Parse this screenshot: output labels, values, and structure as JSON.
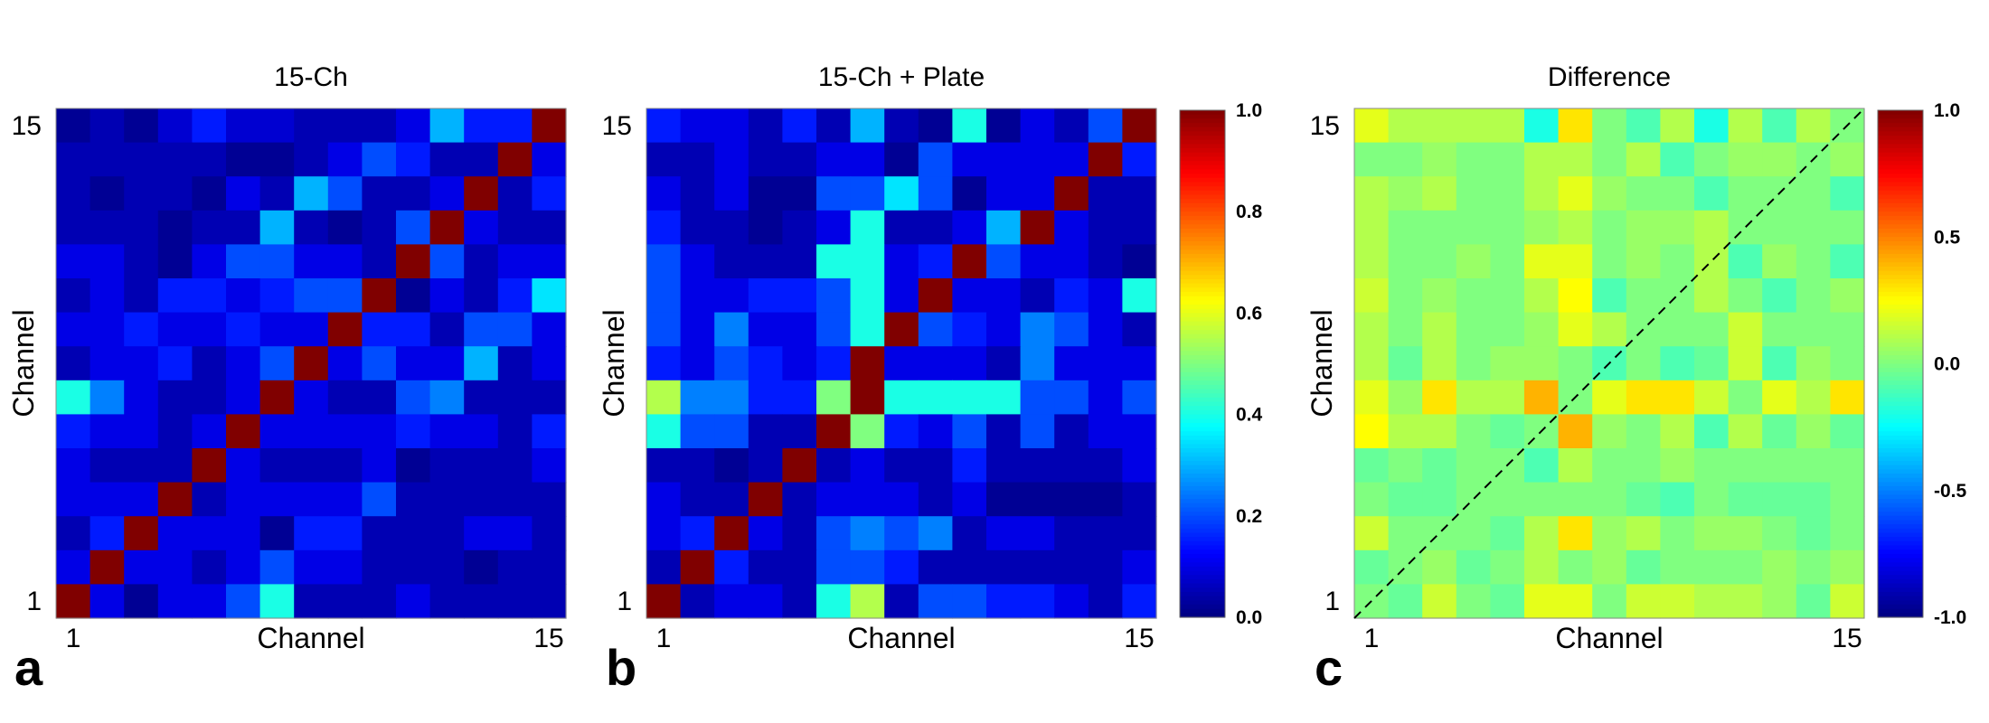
{
  "chart_data": [
    {
      "type": "heatmap",
      "panel_label": "a",
      "title": "15-Ch",
      "xlabel": "Channel",
      "ylabel": "Channel",
      "x_ticks": [
        "1",
        "15"
      ],
      "y_ticks": [
        "1",
        "15"
      ],
      "rows": 15,
      "cols": 15,
      "zlim": [
        0,
        1
      ],
      "colormap": "jet",
      "diagonal_line": false,
      "values": [
        [
          0.02,
          0.05,
          0.02,
          0.08,
          0.15,
          0.08,
          0.08,
          0.05,
          0.05,
          0.05,
          0.1,
          0.3,
          0.15,
          0.15,
          1.0
        ],
        [
          0.05,
          0.05,
          0.05,
          0.05,
          0.05,
          0.02,
          0.02,
          0.05,
          0.1,
          0.2,
          0.15,
          0.05,
          0.05,
          1.0,
          0.1
        ],
        [
          0.05,
          0.02,
          0.05,
          0.05,
          0.02,
          0.1,
          0.05,
          0.3,
          0.2,
          0.05,
          0.05,
          0.1,
          1.0,
          0.05,
          0.15
        ],
        [
          0.05,
          0.05,
          0.05,
          0.02,
          0.05,
          0.05,
          0.3,
          0.05,
          0.02,
          0.05,
          0.2,
          1.0,
          0.1,
          0.05,
          0.05
        ],
        [
          0.1,
          0.1,
          0.05,
          0.02,
          0.1,
          0.2,
          0.2,
          0.1,
          0.1,
          0.05,
          1.0,
          0.2,
          0.05,
          0.1,
          0.1
        ],
        [
          0.05,
          0.1,
          0.05,
          0.15,
          0.15,
          0.1,
          0.15,
          0.2,
          0.2,
          1.0,
          0.02,
          0.1,
          0.05,
          0.15,
          0.35
        ],
        [
          0.1,
          0.1,
          0.15,
          0.1,
          0.1,
          0.15,
          0.1,
          0.1,
          1.0,
          0.15,
          0.15,
          0.05,
          0.2,
          0.2,
          0.1
        ],
        [
          0.05,
          0.1,
          0.1,
          0.15,
          0.05,
          0.1,
          0.2,
          1.0,
          0.1,
          0.2,
          0.1,
          0.1,
          0.3,
          0.05,
          0.1
        ],
        [
          0.4,
          0.25,
          0.1,
          0.05,
          0.05,
          0.1,
          1.0,
          0.1,
          0.05,
          0.05,
          0.2,
          0.25,
          0.05,
          0.05,
          0.05
        ],
        [
          0.15,
          0.1,
          0.1,
          0.05,
          0.1,
          1.0,
          0.1,
          0.1,
          0.1,
          0.1,
          0.15,
          0.1,
          0.1,
          0.05,
          0.15
        ],
        [
          0.1,
          0.05,
          0.05,
          0.05,
          1.0,
          0.1,
          0.05,
          0.05,
          0.05,
          0.1,
          0.02,
          0.05,
          0.05,
          0.05,
          0.1
        ],
        [
          0.1,
          0.1,
          0.1,
          1.0,
          0.05,
          0.1,
          0.1,
          0.1,
          0.1,
          0.2,
          0.05,
          0.05,
          0.05,
          0.05,
          0.05
        ],
        [
          0.05,
          0.15,
          1.0,
          0.1,
          0.1,
          0.1,
          0.02,
          0.15,
          0.15,
          0.05,
          0.05,
          0.05,
          0.1,
          0.1,
          0.05
        ],
        [
          0.1,
          1.0,
          0.1,
          0.1,
          0.05,
          0.1,
          0.2,
          0.1,
          0.1,
          0.05,
          0.05,
          0.05,
          0.02,
          0.05,
          0.05
        ],
        [
          1.0,
          0.1,
          0.02,
          0.1,
          0.1,
          0.2,
          0.4,
          0.05,
          0.05,
          0.05,
          0.1,
          0.05,
          0.05,
          0.05,
          0.05
        ]
      ]
    },
    {
      "type": "heatmap",
      "panel_label": "b",
      "title": "15-Ch + Plate",
      "xlabel": "Channel",
      "ylabel": "Channel",
      "x_ticks": [
        "1",
        "15"
      ],
      "y_ticks": [
        "1",
        "15"
      ],
      "rows": 15,
      "cols": 15,
      "zlim": [
        0,
        1
      ],
      "colormap": "jet",
      "diagonal_line": false,
      "values": [
        [
          0.15,
          0.1,
          0.1,
          0.05,
          0.15,
          0.05,
          0.3,
          0.05,
          0.02,
          0.4,
          0.02,
          0.1,
          0.05,
          0.2,
          1.0
        ],
        [
          0.05,
          0.05,
          0.1,
          0.05,
          0.05,
          0.1,
          0.1,
          0.02,
          0.2,
          0.1,
          0.1,
          0.1,
          0.1,
          1.0,
          0.15
        ],
        [
          0.1,
          0.05,
          0.1,
          0.02,
          0.02,
          0.2,
          0.2,
          0.35,
          0.2,
          0.02,
          0.1,
          0.1,
          1.0,
          0.05,
          0.05
        ],
        [
          0.15,
          0.05,
          0.05,
          0.02,
          0.05,
          0.1,
          0.4,
          0.05,
          0.05,
          0.1,
          0.3,
          1.0,
          0.1,
          0.05,
          0.05
        ],
        [
          0.2,
          0.1,
          0.05,
          0.05,
          0.05,
          0.4,
          0.4,
          0.1,
          0.15,
          1.0,
          0.2,
          0.1,
          0.1,
          0.05,
          0.02
        ],
        [
          0.2,
          0.1,
          0.1,
          0.15,
          0.15,
          0.2,
          0.4,
          0.1,
          1.0,
          0.1,
          0.1,
          0.05,
          0.15,
          0.1,
          0.4
        ],
        [
          0.2,
          0.1,
          0.25,
          0.1,
          0.1,
          0.2,
          0.4,
          1.0,
          0.2,
          0.15,
          0.1,
          0.25,
          0.2,
          0.1,
          0.05
        ],
        [
          0.15,
          0.1,
          0.2,
          0.15,
          0.1,
          0.15,
          1.0,
          0.1,
          0.1,
          0.1,
          0.05,
          0.25,
          0.1,
          0.1,
          0.1
        ],
        [
          0.55,
          0.25,
          0.25,
          0.15,
          0.15,
          0.5,
          1.0,
          0.4,
          0.4,
          0.4,
          0.4,
          0.2,
          0.2,
          0.1,
          0.2
        ],
        [
          0.4,
          0.2,
          0.2,
          0.05,
          0.05,
          1.0,
          0.5,
          0.15,
          0.1,
          0.2,
          0.05,
          0.2,
          0.05,
          0.1,
          0.1
        ],
        [
          0.05,
          0.05,
          0.02,
          0.05,
          1.0,
          0.05,
          0.1,
          0.05,
          0.05,
          0.15,
          0.05,
          0.05,
          0.05,
          0.05,
          0.1
        ],
        [
          0.1,
          0.05,
          0.05,
          1.0,
          0.05,
          0.1,
          0.1,
          0.1,
          0.05,
          0.1,
          0.02,
          0.02,
          0.02,
          0.02,
          0.05
        ],
        [
          0.1,
          0.15,
          1.0,
          0.1,
          0.05,
          0.2,
          0.25,
          0.2,
          0.25,
          0.05,
          0.1,
          0.1,
          0.05,
          0.05,
          0.05
        ],
        [
          0.05,
          1.0,
          0.15,
          0.05,
          0.05,
          0.2,
          0.2,
          0.15,
          0.05,
          0.05,
          0.05,
          0.05,
          0.05,
          0.05,
          0.1
        ],
        [
          1.0,
          0.05,
          0.1,
          0.1,
          0.05,
          0.4,
          0.55,
          0.05,
          0.2,
          0.2,
          0.15,
          0.15,
          0.1,
          0.05,
          0.15
        ]
      ]
    },
    {
      "type": "heatmap",
      "panel_label": "c",
      "title": "Difference",
      "xlabel": "Channel",
      "ylabel": "Channel",
      "x_ticks": [
        "1",
        "15"
      ],
      "y_ticks": [
        "1",
        "15"
      ],
      "rows": 15,
      "cols": 15,
      "zlim": [
        -1,
        1
      ],
      "colormap": "jet",
      "diagonal_line": true,
      "values": [
        [
          0.2,
          0.1,
          0.1,
          0.1,
          0.1,
          -0.2,
          0.3,
          0.0,
          -0.1,
          0.1,
          -0.2,
          0.1,
          -0.1,
          0.1,
          0.0
        ],
        [
          0.0,
          0.0,
          0.05,
          0.0,
          0.0,
          0.1,
          0.1,
          0.0,
          0.1,
          -0.1,
          0.0,
          0.05,
          0.05,
          0.0,
          0.05
        ],
        [
          0.1,
          0.05,
          0.1,
          0.0,
          0.0,
          0.1,
          0.2,
          0.05,
          0.0,
          0.0,
          -0.1,
          0.0,
          0.0,
          0.0,
          -0.1
        ],
        [
          0.1,
          0.0,
          0.0,
          0.0,
          0.0,
          0.05,
          0.1,
          0.0,
          0.05,
          0.05,
          0.1,
          0.0,
          0.0,
          0.0,
          0.0
        ],
        [
          0.1,
          0.0,
          0.0,
          0.05,
          0.0,
          0.2,
          0.2,
          0.0,
          0.05,
          0.0,
          0.1,
          -0.1,
          0.05,
          0.0,
          -0.1
        ],
        [
          0.15,
          0.0,
          0.05,
          0.0,
          0.0,
          0.1,
          0.25,
          -0.1,
          0.0,
          0.0,
          0.1,
          0.0,
          -0.1,
          0.0,
          0.05
        ],
        [
          0.1,
          0.0,
          0.1,
          0.0,
          0.0,
          0.05,
          0.2,
          0.1,
          0.0,
          0.0,
          0.0,
          0.15,
          0.0,
          0.0,
          0.0
        ],
        [
          0.1,
          -0.05,
          0.1,
          0.0,
          0.05,
          0.05,
          0.0,
          -0.1,
          0.0,
          -0.1,
          -0.05,
          0.15,
          -0.1,
          0.05,
          0.0
        ],
        [
          0.2,
          0.05,
          0.3,
          0.1,
          0.1,
          0.4,
          0.0,
          0.2,
          0.3,
          0.3,
          0.15,
          0.0,
          0.2,
          0.1,
          0.3
        ],
        [
          0.25,
          0.1,
          0.1,
          0.0,
          -0.05,
          0.0,
          0.4,
          0.05,
          0.0,
          0.1,
          -0.1,
          0.1,
          -0.05,
          0.05,
          -0.05
        ],
        [
          -0.05,
          0.0,
          -0.05,
          0.0,
          0.0,
          -0.1,
          0.1,
          0.0,
          0.0,
          0.05,
          0.0,
          0.0,
          0.0,
          0.0,
          0.0
        ],
        [
          0.0,
          -0.05,
          -0.05,
          0.0,
          0.0,
          0.0,
          0.0,
          0.0,
          -0.05,
          -0.1,
          0.0,
          -0.05,
          -0.05,
          -0.05,
          0.0
        ],
        [
          0.15,
          0.0,
          0.0,
          0.0,
          -0.05,
          0.1,
          0.3,
          0.05,
          0.1,
          0.0,
          0.05,
          0.05,
          0.0,
          -0.05,
          0.0
        ],
        [
          -0.05,
          0.0,
          0.05,
          -0.05,
          0.0,
          0.1,
          0.0,
          0.05,
          -0.05,
          0.0,
          0.0,
          0.0,
          0.05,
          0.0,
          0.05
        ],
        [
          0.0,
          -0.05,
          0.15,
          0.0,
          -0.05,
          0.2,
          0.2,
          0.0,
          0.15,
          0.15,
          0.1,
          0.1,
          0.05,
          -0.05,
          0.15
        ]
      ]
    }
  ],
  "colorbars": [
    {
      "for_panel": "b",
      "ticks": [
        "1.0",
        "0.8",
        "0.6",
        "0.4",
        "0.2",
        "0.0"
      ],
      "zlim": [
        0,
        1
      ]
    },
    {
      "for_panel": "c",
      "ticks": [
        "1.0",
        "0.5",
        "0.0",
        "-0.5",
        "-1.0"
      ],
      "zlim": [
        -1,
        1
      ]
    }
  ]
}
